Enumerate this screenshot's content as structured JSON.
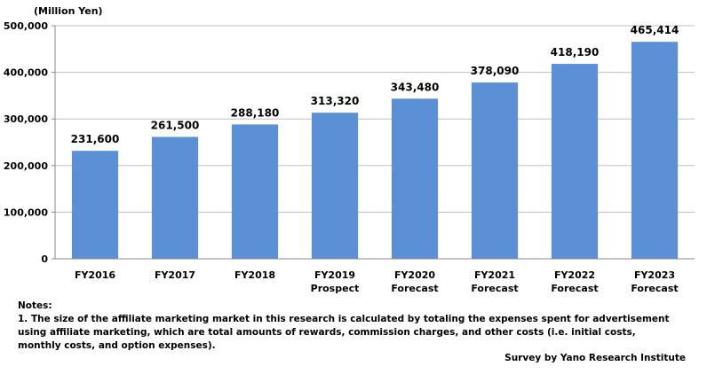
{
  "chart_data": {
    "type": "bar",
    "title": "",
    "ylabel": "(Million Yen)",
    "xlabel": "",
    "ylim": [
      0,
      500000
    ],
    "yticks": [
      "0",
      "100,000",
      "200,000",
      "300,000",
      "400,000",
      "500,000"
    ],
    "grid": true,
    "bar_color": "#5b8fd6",
    "categories": [
      [
        "FY2016"
      ],
      [
        "FY2017"
      ],
      [
        "FY2018"
      ],
      [
        "FY2019",
        "Prospect"
      ],
      [
        "FY2020",
        "Forecast"
      ],
      [
        "FY2021",
        "Forecast"
      ],
      [
        "FY2022",
        "Forecast"
      ],
      [
        "FY2023",
        "Forecast"
      ]
    ],
    "values": [
      231600,
      261500,
      288180,
      313320,
      343480,
      378090,
      418190,
      465414
    ],
    "value_labels": [
      "231,600",
      "261,500",
      "288,180",
      "313,320",
      "343,480",
      "378,090",
      "418,190",
      "465,414"
    ]
  },
  "notes": {
    "heading": "Notes:",
    "lines": [
      "1. The size of the affiliate marketing market in this research is calculated by totaling the expenses spent for advertisement",
      "using affiliate marketing, which are total amounts of rewards, commission charges, and other costs (i.e. initial costs,",
      "monthly costs, and option expenses)."
    ]
  },
  "source": "Survey by Yano Research Institute"
}
